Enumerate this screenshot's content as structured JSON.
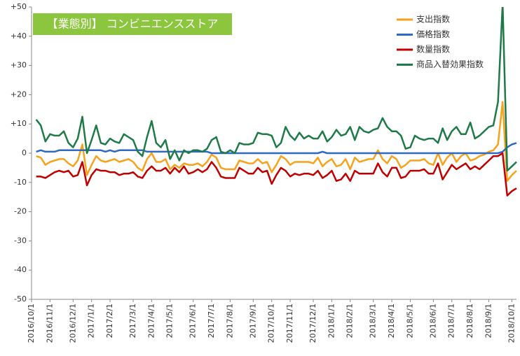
{
  "chart_data": {
    "type": "line",
    "annotation": "【業態別】 コンビニエンスストア",
    "categories": [
      "2016/10/1",
      null,
      null,
      null,
      "2016/11/1",
      null,
      null,
      null,
      null,
      "2016/12/1",
      null,
      null,
      null,
      "2017/1/1",
      null,
      null,
      null,
      "2017/2/1",
      null,
      null,
      null,
      null,
      "2017/3/1",
      null,
      null,
      null,
      "2017/4/1",
      null,
      null,
      null,
      "2017/5/1",
      null,
      null,
      null,
      null,
      "2017/6/1",
      null,
      null,
      null,
      "2017/7/1",
      null,
      null,
      null,
      "2017/8/1",
      null,
      null,
      null,
      null,
      "2017/9/1",
      null,
      null,
      null,
      "2017/10/1",
      null,
      null,
      null,
      "2017/11/1",
      null,
      null,
      null,
      null,
      "2017/12/1",
      null,
      null,
      null,
      "2018/1/1",
      null,
      null,
      null,
      "2018/2/1",
      null,
      null,
      null,
      null,
      "2018/3/1",
      null,
      null,
      null,
      "2018/4/1",
      null,
      null,
      null,
      "2018/5/1",
      null,
      null,
      null,
      null,
      "2018/6/1",
      null,
      null,
      null,
      "2018/7/1",
      null,
      null,
      null,
      "2018/8/1",
      null,
      null,
      null,
      "2018/9/1",
      null,
      null,
      null,
      null,
      "2018/10/1",
      null
    ],
    "series": [
      {
        "name": "支出指数",
        "color": "#f7a21b",
        "values": [
          null,
          -1,
          -1.5,
          -4,
          -3,
          -2.5,
          -2,
          -2,
          -3.5,
          -4.5,
          -2.5,
          3,
          -7.5,
          -4,
          -1,
          -2.5,
          -3,
          -2.5,
          -2,
          -3,
          -2.5,
          -2,
          -3,
          -5,
          -6,
          -2,
          0,
          -3,
          -3,
          -2,
          -5.5,
          -4,
          -5,
          -3.5,
          -4,
          -4,
          -3.5,
          -4.5,
          -3,
          -0.5,
          -1.5,
          -5,
          -5.5,
          -5.5,
          -5.5,
          -2.5,
          -3,
          -3.5,
          -3.5,
          -2,
          -3.5,
          -3,
          -6.5,
          -4,
          -1,
          -2,
          -4,
          -3,
          -3,
          -3,
          -3,
          -3.5,
          -1.5,
          -4.5,
          -3,
          -2,
          -4.5,
          -4,
          -2,
          -5.5,
          -1.5,
          -3,
          -2.5,
          -2,
          -2,
          1,
          -2,
          -3.5,
          -1,
          -2,
          -5,
          -4,
          -2.5,
          -2.5,
          -2.5,
          -2,
          -3.5,
          -4,
          0,
          -4,
          -1.5,
          0,
          -3,
          -1,
          0,
          -2.5,
          -2,
          -1,
          -0.5,
          0.5,
          1,
          3,
          17.5,
          -9.5,
          -7.5,
          -6
        ]
      },
      {
        "name": "価格指数",
        "color": "#2f69c2",
        "values": [
          null,
          0.5,
          1,
          0.5,
          0.5,
          0.5,
          1,
          1,
          1,
          1,
          1,
          1,
          1,
          1,
          1,
          1,
          0.5,
          1,
          0.5,
          1,
          1,
          1,
          1,
          1,
          1,
          0.5,
          0.5,
          0.5,
          0.5,
          0.5,
          0.5,
          0.5,
          0.5,
          0.5,
          0.5,
          0.5,
          0.5,
          0.5,
          0.5,
          0,
          0,
          0,
          0,
          0,
          0,
          0,
          0,
          0,
          0,
          0,
          0,
          0,
          0,
          0,
          0,
          0,
          0,
          0,
          0,
          0,
          0,
          0,
          0,
          0.5,
          0,
          0,
          0,
          0,
          0,
          0,
          0,
          0,
          0,
          0,
          0,
          0,
          0,
          0,
          0,
          0,
          0,
          0,
          0,
          0,
          0,
          0,
          0,
          0,
          0,
          0,
          0,
          0,
          0,
          0,
          0,
          0,
          0,
          0,
          0,
          0,
          0,
          0,
          0.5,
          2,
          3,
          3.5
        ]
      },
      {
        "name": "数量指数",
        "color": "#c00000",
        "values": [
          null,
          -8,
          -8,
          -8.5,
          -7.5,
          -6.5,
          -6,
          -6.5,
          -6,
          -8,
          -7.5,
          -3,
          -11,
          -7.5,
          -5.5,
          -6,
          -6,
          -6.5,
          -6.5,
          -7.5,
          -7,
          -7,
          -6.5,
          -8,
          -8.5,
          -6,
          -4.5,
          -6,
          -6,
          -5,
          -7,
          -5,
          -6.5,
          -4.5,
          -7,
          -6.5,
          -5.5,
          -6.5,
          -5.5,
          -3,
          -5,
          -8,
          -8.5,
          -8.5,
          -8.5,
          -5,
          -6,
          -7,
          -7,
          -5,
          -6.5,
          -6,
          -10.5,
          -7.5,
          -5,
          -6,
          -8,
          -7,
          -7.5,
          -7,
          -7,
          -7.5,
          -6,
          -8.5,
          -7.5,
          -6,
          -9.5,
          -9,
          -7,
          -9.5,
          -6,
          -7,
          -7,
          -7,
          -7,
          -3.5,
          -6.5,
          -8,
          -5,
          -5,
          -8.5,
          -8,
          -6,
          -6,
          -6,
          -5.5,
          -7,
          -7,
          -3.5,
          -9,
          -6.5,
          -4,
          -5.5,
          -4.5,
          -3.5,
          -5.5,
          -4.5,
          -5.5,
          -4,
          -2.5,
          -1,
          -1,
          0,
          -14.5,
          -13,
          -12
        ]
      },
      {
        "name": "商品入替効果指数",
        "color": "#1e7a46",
        "values": [
          null,
          11.5,
          9.5,
          4,
          6.5,
          6,
          6,
          7.5,
          3.5,
          2,
          5,
          12.5,
          0,
          4.5,
          9.5,
          3.5,
          3,
          5,
          4,
          3.5,
          6.5,
          5.5,
          4.5,
          0.5,
          -1,
          5.5,
          11,
          3.5,
          2,
          4.5,
          -2,
          1,
          -2.5,
          1,
          0,
          1,
          1,
          0.5,
          1.5,
          4.5,
          5.5,
          0.5,
          0,
          1,
          0,
          3.5,
          3,
          3,
          3.5,
          7,
          6.5,
          6.5,
          6,
          2,
          3.5,
          9,
          6,
          4.5,
          7,
          5,
          6,
          5,
          5,
          7.5,
          4,
          5.5,
          8,
          6,
          6.5,
          9,
          4.5,
          9,
          7.5,
          7,
          8,
          8.5,
          12,
          9,
          7.5,
          7.5,
          6,
          1.5,
          2,
          6,
          5,
          4.5,
          5,
          5,
          3.5,
          8.5,
          4.5,
          7.5,
          9,
          6.5,
          6.5,
          10.5,
          5,
          6,
          7.5,
          9,
          9.5,
          17.5,
          51,
          -6,
          -4.5,
          -3
        ]
      }
    ],
    "ylim": [
      -50,
      50
    ],
    "yticks": [
      {
        "value": 50,
        "label": "+50"
      },
      {
        "value": 40,
        "label": "+40"
      },
      {
        "value": 30,
        "label": "+30"
      },
      {
        "value": 20,
        "label": "+20"
      },
      {
        "value": 10,
        "label": "+10"
      },
      0,
      -10,
      -20,
      -30,
      -40,
      -50
    ],
    "grid": false,
    "legend": "upper right"
  }
}
